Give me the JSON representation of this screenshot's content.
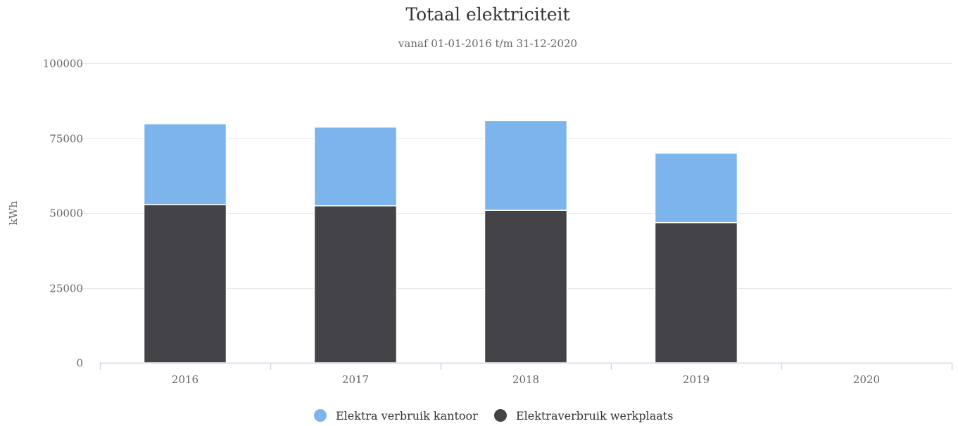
{
  "chart_data": {
    "type": "bar",
    "stacked": true,
    "title": "Totaal elektriciteit",
    "subtitle": "vanaf 01-01-2016 t/m 31-12-2020",
    "xlabel": "",
    "ylabel": "kWh",
    "categories": [
      "2016",
      "2017",
      "2018",
      "2019",
      "2020"
    ],
    "series": [
      {
        "name": "Elektraverbruik werkplaats",
        "color": "#434348",
        "values": [
          52800,
          52400,
          50900,
          46800,
          0
        ]
      },
      {
        "name": "Elektra verbruik kantoor",
        "color": "#7cb5ec",
        "values": [
          27000,
          26300,
          30000,
          23200,
          0
        ]
      }
    ],
    "legend_order": [
      1,
      0
    ],
    "ylim": [
      0,
      100000
    ],
    "yticks": [
      0,
      25000,
      50000,
      75000,
      100000
    ],
    "ytick_labels": [
      "0",
      "25000",
      "50000",
      "75000",
      "100000"
    ],
    "grid": true,
    "legend_position": "bottom-center"
  }
}
